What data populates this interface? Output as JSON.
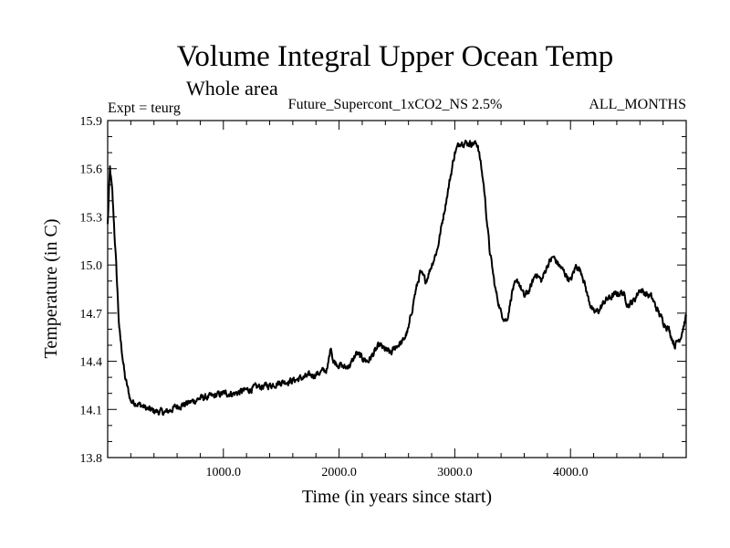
{
  "chart_data": {
    "type": "line",
    "title": "Volume Integral Upper Ocean Temp",
    "subtitle": "Whole area",
    "left_label": "Expt = teurg",
    "center_label": "Future_Supercont_1xCO2_NS 2.5%",
    "right_label": "ALL_MONTHS",
    "xlabel": "Time (in years since start)",
    "ylabel": "Temperature (in C)",
    "xlim": [
      0,
      5000
    ],
    "ylim": [
      13.8,
      15.9
    ],
    "x_ticks": [
      1000,
      2000,
      3000,
      4000
    ],
    "x_tick_labels": [
      "1000.0",
      "2000.0",
      "3000.0",
      "4000.0"
    ],
    "y_ticks": [
      13.8,
      14.1,
      14.4,
      14.7,
      15.0,
      15.3,
      15.6,
      15.9
    ],
    "y_tick_labels": [
      "13.8",
      "14.1",
      "14.4",
      "14.7",
      "15.0",
      "15.3",
      "15.6",
      "15.9"
    ],
    "grid": false,
    "legend": "none",
    "line_color": "#000000",
    "series": [
      {
        "x": [
          0,
          20,
          40,
          70,
          100,
          150,
          200,
          250,
          300,
          350,
          400,
          500,
          550,
          600,
          700,
          800,
          900,
          1000,
          1100,
          1200,
          1300,
          1400,
          1500,
          1600,
          1700,
          1800,
          1900,
          1930,
          1950,
          2000,
          2050,
          2100,
          2150,
          2200,
          2250,
          2300,
          2350,
          2400,
          2450,
          2500,
          2550,
          2600,
          2650,
          2700,
          2750,
          2800,
          2850,
          2900,
          2950,
          3000,
          3050,
          3100,
          3150,
          3200,
          3250,
          3300,
          3350,
          3400,
          3450,
          3500,
          3550,
          3600,
          3650,
          3700,
          3750,
          3800,
          3850,
          3900,
          3950,
          4000,
          4050,
          4100,
          4150,
          4200,
          4250,
          4300,
          4350,
          4400,
          4450,
          4500,
          4550,
          4600,
          4650,
          4700,
          4750,
          4800,
          4850,
          4900,
          4950,
          5000
        ],
        "y": [
          15.25,
          15.6,
          15.45,
          15.05,
          14.6,
          14.3,
          14.15,
          14.14,
          14.12,
          14.1,
          14.09,
          14.08,
          14.1,
          14.12,
          14.14,
          14.17,
          14.18,
          14.2,
          14.2,
          14.22,
          14.24,
          14.25,
          14.27,
          14.28,
          14.3,
          14.32,
          14.35,
          14.5,
          14.4,
          14.38,
          14.36,
          14.38,
          14.45,
          14.42,
          14.4,
          14.45,
          14.5,
          14.47,
          14.45,
          14.5,
          14.52,
          14.6,
          14.8,
          14.95,
          14.9,
          15.0,
          15.1,
          15.3,
          15.5,
          15.7,
          15.77,
          15.76,
          15.76,
          15.75,
          15.5,
          15.1,
          14.85,
          14.7,
          14.65,
          14.85,
          14.9,
          14.8,
          14.85,
          14.95,
          14.9,
          15.0,
          15.05,
          15.0,
          14.95,
          14.9,
          15.0,
          14.95,
          14.8,
          14.7,
          14.72,
          14.78,
          14.8,
          14.82,
          14.83,
          14.75,
          14.78,
          14.85,
          14.82,
          14.8,
          14.72,
          14.65,
          14.6,
          14.5,
          14.55,
          14.68
        ]
      }
    ]
  }
}
